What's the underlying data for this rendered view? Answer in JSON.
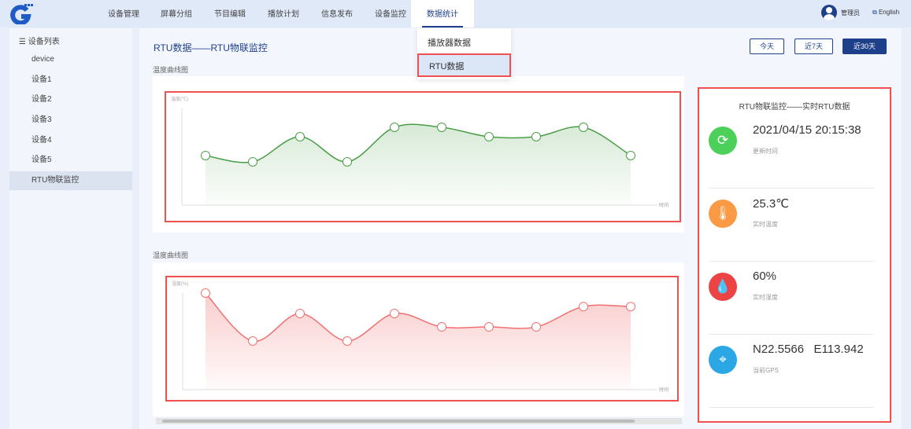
{
  "header": {
    "nav": [
      "设备管理",
      "屏幕分组",
      "节目编辑",
      "播放计划",
      "信息发布",
      "设备监控",
      "数据统计"
    ],
    "active_nav": "数据统计",
    "dropdown": [
      "播放器数据",
      "RTU数据"
    ],
    "user": "管理员",
    "language": "English"
  },
  "sidebar": {
    "title": "设备列表",
    "items": [
      "device",
      "设备1",
      "设备2",
      "设备3",
      "设备4",
      "设备5",
      "RTU物联监控"
    ],
    "active": "RTU物联监控"
  },
  "main": {
    "title": "RTU数据——RTU物联监控",
    "ranges": [
      "今天",
      "近7天",
      "近30天"
    ],
    "active_range": "近30天",
    "temp_card_label": "温度曲线图",
    "hum_card_label": "湿度曲线图"
  },
  "realtime": {
    "title": "RTU物联监控——实时RTU数据",
    "items": [
      {
        "icon": "refresh-clock-icon",
        "value": "2021/04/15 20:15:38",
        "label": "更新时间",
        "color": "#4cd05a"
      },
      {
        "icon": "thermometer-icon",
        "value": "25.3℃",
        "label": "实时温度",
        "color": "#fb9a45"
      },
      {
        "icon": "water-drops-icon",
        "value": "60%",
        "label": "实时湿度",
        "color": "#ec4444"
      },
      {
        "icon": "map-pin-icon",
        "value": "N22.5566   E113.942",
        "label": "当前GPS",
        "color": "#2ba7e6"
      }
    ]
  },
  "chart_data": [
    {
      "type": "area",
      "ylabel": "温度(℃)",
      "xlabel": "时间",
      "ylim": [
        0,
        40
      ],
      "color": "#4a9e46",
      "values": [
        20.5,
        17.9,
        28.3,
        17.9,
        32.2,
        32.2,
        28.3,
        28.3,
        32.2,
        20.5
      ]
    },
    {
      "type": "area",
      "ylabel": "湿度(%)",
      "xlabel": "时间",
      "ylim": [
        0,
        100
      ],
      "color": "#f07070",
      "values": [
        100,
        50.4,
        78.9,
        50.4,
        78.9,
        65,
        65,
        65,
        86,
        86
      ]
    }
  ]
}
